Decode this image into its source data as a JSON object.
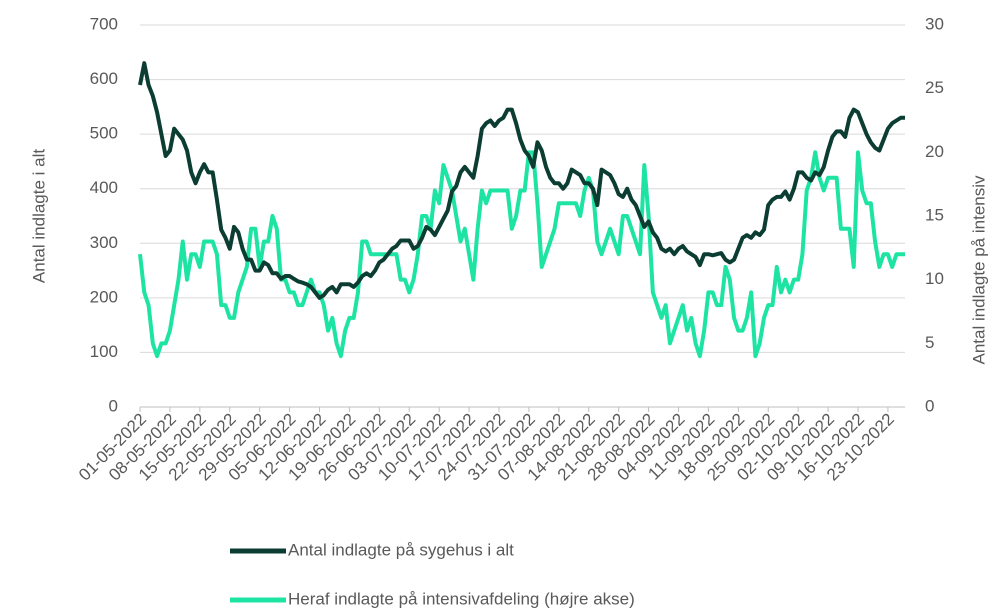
{
  "chart_data": {
    "type": "line",
    "y_label": "Antal indlagte i alt",
    "y2_label": "Antal indlagte på intensiv",
    "categories": [
      "01-05-2022",
      null,
      null,
      null,
      null,
      null,
      null,
      "08-05-2022",
      null,
      null,
      null,
      null,
      null,
      null,
      "15-05-2022",
      null,
      null,
      null,
      null,
      null,
      null,
      "22-05-2022",
      null,
      null,
      null,
      null,
      null,
      null,
      "29-05-2022",
      null,
      null,
      null,
      null,
      null,
      null,
      "05-06-2022",
      null,
      null,
      null,
      null,
      null,
      null,
      "12-06-2022",
      null,
      null,
      null,
      null,
      null,
      null,
      "19-06-2022",
      null,
      null,
      null,
      null,
      null,
      null,
      "26-06-2022",
      null,
      null,
      null,
      null,
      null,
      null,
      "03-07-2022",
      null,
      null,
      null,
      null,
      null,
      null,
      "10-07-2022",
      null,
      null,
      null,
      null,
      null,
      null,
      "17-07-2022",
      null,
      null,
      null,
      null,
      null,
      null,
      "24-07-2022",
      null,
      null,
      null,
      null,
      null,
      null,
      "31-07-2022",
      null,
      null,
      null,
      null,
      null,
      null,
      "07-08-2022",
      null,
      null,
      null,
      null,
      null,
      null,
      "14-08-2022",
      null,
      null,
      null,
      null,
      null,
      null,
      "21-08-2022",
      null,
      null,
      null,
      null,
      null,
      null,
      "28-08-2022",
      null,
      null,
      null,
      null,
      null,
      null,
      "04-09-2022",
      null,
      null,
      null,
      null,
      null,
      null,
      "11-09-2022",
      null,
      null,
      null,
      null,
      null,
      null,
      "18-09-2022",
      null,
      null,
      null,
      null,
      null,
      null,
      "25-09-2022",
      null,
      null,
      null,
      null,
      null,
      null,
      "02-10-2022",
      null,
      null,
      null,
      null,
      null,
      null,
      "09-10-2022",
      null,
      null,
      null,
      null,
      null,
      null,
      "16-10-2022",
      null,
      null,
      null,
      null,
      null,
      null,
      "23-10-2022",
      null,
      null,
      null,
      null
    ],
    "series": [
      {
        "name": "Antal indlagte på sygehus i alt",
        "color": "#0c3d33",
        "values": [
          590,
          630,
          590,
          570,
          540,
          500,
          460,
          470,
          510,
          500,
          490,
          470,
          430,
          410,
          430,
          445,
          430,
          430,
          380,
          325,
          310,
          290,
          330,
          320,
          290,
          270,
          270,
          250,
          250,
          265,
          260,
          245,
          245,
          235,
          240,
          240,
          235,
          230,
          228,
          225,
          220,
          210,
          200,
          205,
          215,
          220,
          210,
          225,
          225,
          225,
          220,
          228,
          240,
          245,
          240,
          250,
          265,
          270,
          280,
          290,
          295,
          305,
          305,
          305,
          290,
          295,
          310,
          330,
          325,
          315,
          330,
          345,
          360,
          395,
          405,
          430,
          440,
          430,
          420,
          460,
          510,
          520,
          525,
          515,
          525,
          530,
          545,
          545,
          520,
          490,
          470,
          460,
          440,
          485,
          470,
          440,
          420,
          410,
          410,
          400,
          410,
          435,
          430,
          425,
          410,
          410,
          400,
          370,
          435,
          430,
          425,
          410,
          390,
          385,
          400,
          380,
          370,
          350,
          330,
          340,
          320,
          310,
          290,
          285,
          290,
          280,
          290,
          295,
          285,
          280,
          275,
          260,
          280,
          280,
          278,
          280,
          282,
          270,
          265,
          270,
          290,
          310,
          315,
          310,
          320,
          315,
          325,
          370,
          380,
          385,
          385,
          395,
          380,
          400,
          430,
          430,
          420,
          415,
          430,
          425,
          440,
          470,
          495,
          505,
          505,
          495,
          530,
          545,
          540,
          520,
          500,
          485,
          475,
          470,
          490,
          510,
          520,
          525,
          530,
          530
        ]
      },
      {
        "name": "Heraf indlagte på intensivafdeling (højre akse)",
        "color": "#1de3a3",
        "axis": "y2",
        "values": [
          12,
          9,
          8,
          5,
          4,
          5,
          5,
          6,
          8,
          10,
          13,
          10,
          12,
          12,
          11,
          13,
          13,
          13,
          12,
          8,
          8,
          7,
          7,
          9,
          10,
          11,
          14,
          14,
          11,
          13,
          13,
          15,
          14,
          10,
          10,
          9,
          9,
          8,
          8,
          9,
          10,
          9,
          9,
          8,
          6,
          7,
          5,
          4,
          6,
          7,
          7,
          9,
          13,
          13,
          12,
          12,
          12,
          12,
          12,
          12,
          12,
          10,
          10,
          9,
          10,
          12,
          15,
          15,
          14,
          17,
          16,
          19,
          18,
          17,
          15,
          13,
          14,
          12,
          10,
          14,
          17,
          16,
          17,
          17,
          17,
          17,
          17,
          14,
          15,
          17,
          17,
          20,
          20,
          16,
          11,
          12,
          13,
          14,
          16,
          16,
          16,
          16,
          16,
          15,
          17,
          18,
          17,
          13,
          12,
          13,
          14,
          13,
          12,
          15,
          15,
          14,
          13,
          12,
          19,
          15,
          9,
          8,
          7,
          8,
          5,
          6,
          7,
          8,
          6,
          7,
          5,
          4,
          6,
          9,
          9,
          8,
          8,
          11,
          10,
          7,
          6,
          6,
          7,
          9,
          4,
          5,
          7,
          8,
          8,
          11,
          9,
          10,
          9,
          10,
          10,
          12,
          17,
          18,
          20,
          18,
          17,
          18,
          18,
          18,
          14,
          14,
          14,
          11,
          20,
          17,
          16,
          16,
          13,
          11,
          12,
          12,
          11,
          12,
          12,
          12
        ]
      }
    ],
    "ylim": [
      0,
      700
    ],
    "yticks": [
      0,
      100,
      200,
      300,
      400,
      500,
      600,
      700
    ],
    "y2lim": [
      0,
      30
    ],
    "y2ticks": [
      0,
      5,
      10,
      15,
      20,
      25,
      30
    ],
    "grid": true,
    "legend": "bottom"
  }
}
